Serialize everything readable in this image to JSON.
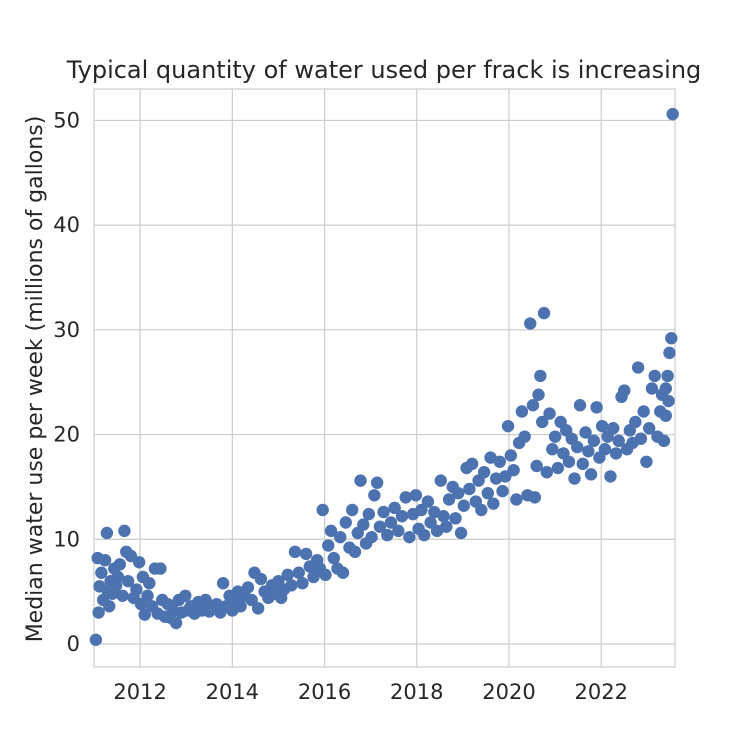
{
  "chart_data": {
    "type": "scatter",
    "title": "Typical quantity of water used per frack is increasing",
    "xlabel": "",
    "ylabel": "Median water use per week (millions of gallons)",
    "x_ticks": [
      "2012",
      "2014",
      "2016",
      "2018",
      "2020",
      "2022"
    ],
    "y_ticks": [
      "0",
      "10",
      "20",
      "30",
      "40",
      "50"
    ],
    "xlim": [
      2011.0,
      2023.6
    ],
    "ylim": [
      -2.2,
      53
    ],
    "grid": true,
    "legend": "none",
    "colors": {
      "points": "#4c72b0",
      "grid": "#cccccc",
      "text": "#262626"
    },
    "series": [
      {
        "points": [
          [
            2011.04,
            0.4
          ],
          [
            2011.08,
            8.2
          ],
          [
            2011.1,
            3.0
          ],
          [
            2011.12,
            5.5
          ],
          [
            2011.16,
            6.8
          ],
          [
            2011.2,
            4.2
          ],
          [
            2011.24,
            8.0
          ],
          [
            2011.28,
            10.6
          ],
          [
            2011.3,
            5.0
          ],
          [
            2011.33,
            3.6
          ],
          [
            2011.36,
            6.0
          ],
          [
            2011.4,
            4.8
          ],
          [
            2011.44,
            7.2
          ],
          [
            2011.48,
            5.6
          ],
          [
            2011.52,
            6.4
          ],
          [
            2011.56,
            7.6
          ],
          [
            2011.62,
            4.6
          ],
          [
            2011.66,
            10.8
          ],
          [
            2011.7,
            8.8
          ],
          [
            2011.74,
            6.0
          ],
          [
            2011.8,
            8.4
          ],
          [
            2011.86,
            4.4
          ],
          [
            2011.92,
            5.2
          ],
          [
            2011.98,
            7.8
          ],
          [
            2012.02,
            3.8
          ],
          [
            2012.06,
            6.4
          ],
          [
            2012.1,
            2.8
          ],
          [
            2012.16,
            4.6
          ],
          [
            2012.2,
            5.8
          ],
          [
            2012.26,
            3.6
          ],
          [
            2012.32,
            7.2
          ],
          [
            2012.38,
            2.9
          ],
          [
            2012.44,
            7.2
          ],
          [
            2012.48,
            4.2
          ],
          [
            2012.54,
            2.6
          ],
          [
            2012.6,
            3.8
          ],
          [
            2012.66,
            2.5
          ],
          [
            2012.72,
            3.2
          ],
          [
            2012.78,
            2.0
          ],
          [
            2012.84,
            4.2
          ],
          [
            2012.9,
            3.0
          ],
          [
            2012.98,
            4.6
          ],
          [
            2013.04,
            3.2
          ],
          [
            2013.1,
            3.6
          ],
          [
            2013.18,
            2.9
          ],
          [
            2013.26,
            4.0
          ],
          [
            2013.34,
            3.2
          ],
          [
            2013.42,
            4.2
          ],
          [
            2013.5,
            3.1
          ],
          [
            2013.58,
            3.4
          ],
          [
            2013.66,
            3.8
          ],
          [
            2013.74,
            3.0
          ],
          [
            2013.8,
            5.8
          ],
          [
            2013.86,
            3.6
          ],
          [
            2013.94,
            4.6
          ],
          [
            2014.0,
            3.2
          ],
          [
            2014.06,
            4.0
          ],
          [
            2014.12,
            5.0
          ],
          [
            2014.18,
            3.6
          ],
          [
            2014.26,
            4.6
          ],
          [
            2014.34,
            5.4
          ],
          [
            2014.42,
            4.2
          ],
          [
            2014.48,
            6.8
          ],
          [
            2014.56,
            3.4
          ],
          [
            2014.62,
            6.2
          ],
          [
            2014.7,
            5.0
          ],
          [
            2014.78,
            4.4
          ],
          [
            2014.86,
            5.6
          ],
          [
            2014.94,
            4.8
          ],
          [
            2015.0,
            6.0
          ],
          [
            2015.06,
            4.4
          ],
          [
            2015.12,
            5.2
          ],
          [
            2015.2,
            6.6
          ],
          [
            2015.28,
            5.6
          ],
          [
            2015.36,
            8.8
          ],
          [
            2015.44,
            6.8
          ],
          [
            2015.52,
            5.8
          ],
          [
            2015.6,
            8.6
          ],
          [
            2015.68,
            7.4
          ],
          [
            2015.76,
            6.4
          ],
          [
            2015.84,
            8.0
          ],
          [
            2015.9,
            7.2
          ],
          [
            2015.96,
            12.8
          ],
          [
            2016.02,
            6.6
          ],
          [
            2016.08,
            9.4
          ],
          [
            2016.14,
            10.8
          ],
          [
            2016.2,
            8.2
          ],
          [
            2016.28,
            7.2
          ],
          [
            2016.34,
            10.2
          ],
          [
            2016.4,
            6.8
          ],
          [
            2016.46,
            11.6
          ],
          [
            2016.54,
            9.2
          ],
          [
            2016.6,
            12.8
          ],
          [
            2016.66,
            8.8
          ],
          [
            2016.72,
            10.6
          ],
          [
            2016.78,
            15.6
          ],
          [
            2016.84,
            11.4
          ],
          [
            2016.9,
            9.6
          ],
          [
            2016.96,
            12.4
          ],
          [
            2017.02,
            10.2
          ],
          [
            2017.08,
            14.2
          ],
          [
            2017.14,
            15.4
          ],
          [
            2017.2,
            11.2
          ],
          [
            2017.28,
            12.6
          ],
          [
            2017.36,
            10.4
          ],
          [
            2017.44,
            11.6
          ],
          [
            2017.52,
            13.0
          ],
          [
            2017.6,
            10.8
          ],
          [
            2017.68,
            12.2
          ],
          [
            2017.76,
            14.0
          ],
          [
            2017.84,
            10.2
          ],
          [
            2017.92,
            12.4
          ],
          [
            2017.98,
            14.2
          ],
          [
            2018.04,
            11.0
          ],
          [
            2018.1,
            12.8
          ],
          [
            2018.16,
            10.4
          ],
          [
            2018.24,
            13.6
          ],
          [
            2018.3,
            11.6
          ],
          [
            2018.38,
            12.6
          ],
          [
            2018.44,
            10.8
          ],
          [
            2018.52,
            15.6
          ],
          [
            2018.58,
            12.2
          ],
          [
            2018.64,
            11.2
          ],
          [
            2018.7,
            13.8
          ],
          [
            2018.78,
            15.0
          ],
          [
            2018.84,
            12.0
          ],
          [
            2018.9,
            14.4
          ],
          [
            2018.96,
            10.6
          ],
          [
            2019.02,
            13.2
          ],
          [
            2019.08,
            16.8
          ],
          [
            2019.14,
            14.8
          ],
          [
            2019.2,
            17.2
          ],
          [
            2019.28,
            13.6
          ],
          [
            2019.34,
            15.6
          ],
          [
            2019.4,
            12.8
          ],
          [
            2019.46,
            16.4
          ],
          [
            2019.54,
            14.4
          ],
          [
            2019.6,
            17.8
          ],
          [
            2019.66,
            13.4
          ],
          [
            2019.72,
            15.8
          ],
          [
            2019.8,
            17.4
          ],
          [
            2019.86,
            14.6
          ],
          [
            2019.92,
            16.0
          ],
          [
            2019.98,
            20.8
          ],
          [
            2020.04,
            18.0
          ],
          [
            2020.1,
            16.6
          ],
          [
            2020.16,
            13.8
          ],
          [
            2020.22,
            19.2
          ],
          [
            2020.28,
            22.2
          ],
          [
            2020.34,
            19.8
          ],
          [
            2020.4,
            14.2
          ],
          [
            2020.46,
            30.6
          ],
          [
            2020.52,
            22.8
          ],
          [
            2020.56,
            14.0
          ],
          [
            2020.6,
            17.0
          ],
          [
            2020.64,
            23.8
          ],
          [
            2020.68,
            25.6
          ],
          [
            2020.72,
            21.2
          ],
          [
            2020.76,
            31.6
          ],
          [
            2020.82,
            16.4
          ],
          [
            2020.88,
            22.0
          ],
          [
            2020.94,
            18.6
          ],
          [
            2021.0,
            19.8
          ],
          [
            2021.06,
            16.8
          ],
          [
            2021.12,
            21.2
          ],
          [
            2021.18,
            18.2
          ],
          [
            2021.24,
            20.4
          ],
          [
            2021.3,
            17.4
          ],
          [
            2021.36,
            19.6
          ],
          [
            2021.42,
            15.8
          ],
          [
            2021.48,
            18.8
          ],
          [
            2021.54,
            22.8
          ],
          [
            2021.6,
            17.2
          ],
          [
            2021.66,
            20.2
          ],
          [
            2021.72,
            18.4
          ],
          [
            2021.78,
            16.2
          ],
          [
            2021.84,
            19.4
          ],
          [
            2021.9,
            22.6
          ],
          [
            2021.96,
            17.8
          ],
          [
            2022.02,
            20.8
          ],
          [
            2022.08,
            18.6
          ],
          [
            2022.14,
            19.8
          ],
          [
            2022.2,
            16.0
          ],
          [
            2022.26,
            20.6
          ],
          [
            2022.32,
            18.2
          ],
          [
            2022.38,
            19.4
          ],
          [
            2022.44,
            23.6
          ],
          [
            2022.5,
            24.2
          ],
          [
            2022.56,
            18.6
          ],
          [
            2022.62,
            20.4
          ],
          [
            2022.68,
            19.2
          ],
          [
            2022.74,
            21.2
          ],
          [
            2022.8,
            26.4
          ],
          [
            2022.86,
            19.6
          ],
          [
            2022.92,
            22.2
          ],
          [
            2022.98,
            17.4
          ],
          [
            2023.04,
            20.6
          ],
          [
            2023.1,
            24.4
          ],
          [
            2023.16,
            25.6
          ],
          [
            2023.22,
            19.8
          ],
          [
            2023.28,
            22.2
          ],
          [
            2023.32,
            23.8
          ],
          [
            2023.36,
            19.4
          ],
          [
            2023.4,
            21.8
          ],
          [
            2023.44,
            25.6
          ],
          [
            2023.48,
            27.8
          ],
          [
            2023.52,
            29.2
          ],
          [
            2023.55,
            50.6
          ],
          [
            2023.4,
            24.4
          ],
          [
            2023.46,
            23.2
          ]
        ]
      }
    ]
  }
}
